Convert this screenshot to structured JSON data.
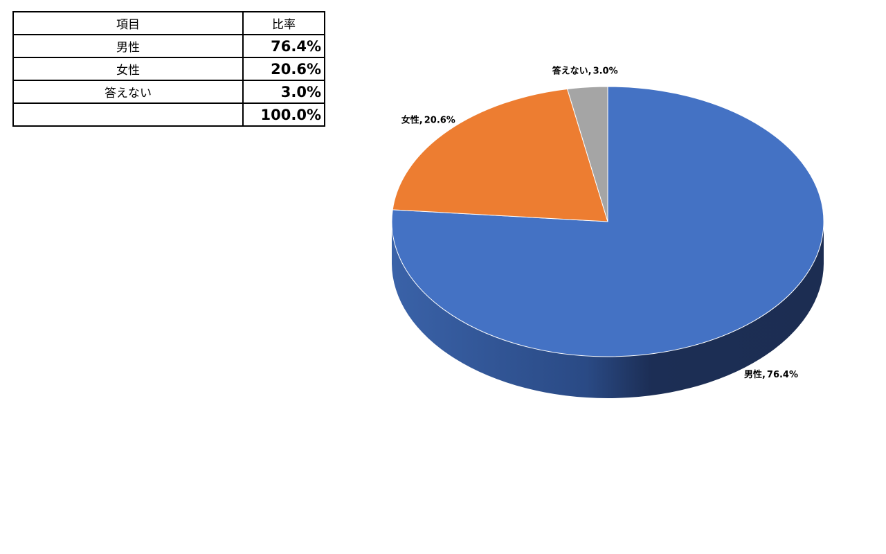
{
  "table": {
    "header": [
      "項目",
      "比率"
    ],
    "rows": [
      [
        "男性",
        "76.4%"
      ],
      [
        "女性",
        "20.6%"
      ],
      [
        "答えない",
        "3.0%"
      ]
    ],
    "total": "100.0%"
  },
  "chart_data": {
    "type": "pie",
    "categories": [
      "男性",
      "女性",
      "答えない"
    ],
    "values": [
      76.4,
      20.6,
      3.0
    ],
    "value_labels": [
      "76.4%",
      "20.6%",
      "3.0%"
    ],
    "colors": [
      "#4472c4",
      "#ed7d31",
      "#a5a5a5"
    ],
    "data_label_separator": ","
  }
}
